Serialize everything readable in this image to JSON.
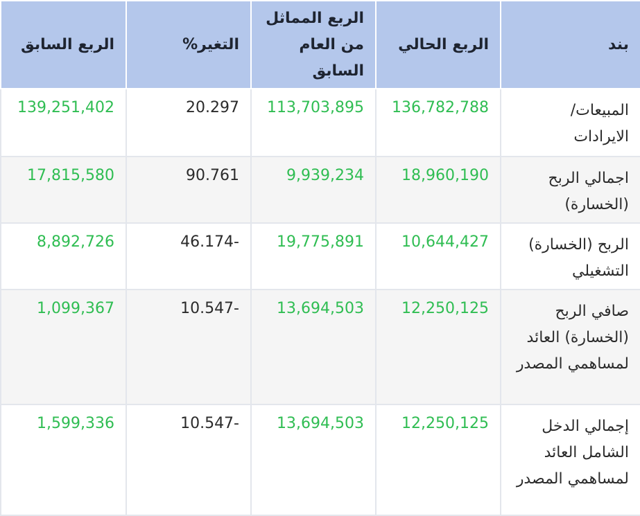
{
  "table": {
    "headers": {
      "item": "بند",
      "current_quarter": "الربع الحالي",
      "same_quarter_last_year": "الربع المماثل من العام السابق",
      "change_pct": "التغير%",
      "previous_quarter": "الربع السابق"
    },
    "rows": [
      {
        "item": "المبيعات/ الايرادات",
        "current_quarter": "136,782,788",
        "same_quarter_last_year": "113,703,895",
        "change_pct": "20.297",
        "previous_quarter": "139,251,402"
      },
      {
        "item": "اجمالي الربح (الخسارة)",
        "current_quarter": "18,960,190",
        "same_quarter_last_year": "9,939,234",
        "change_pct": "90.761",
        "previous_quarter": "17,815,580"
      },
      {
        "item": "الربح (الخسارة) التشغيلي",
        "current_quarter": "10,644,427",
        "same_quarter_last_year": "19,775,891",
        "change_pct": "46.174-",
        "previous_quarter": "8,892,726"
      },
      {
        "item": "صافي الربح (الخسارة) العائد لمساهمي المصدر",
        "current_quarter": "12,250,125",
        "same_quarter_last_year": "13,694,503",
        "change_pct": "10.547-",
        "previous_quarter": "1,099,367"
      },
      {
        "item": "إجمالي الدخل الشامل العائد لمساهمي المصدر",
        "current_quarter": "12,250,125",
        "same_quarter_last_year": "13,694,503",
        "change_pct": "10.547-",
        "previous_quarter": "1,599,336"
      }
    ]
  },
  "colors": {
    "header_bg": "#b4c7eb",
    "value_green": "#2fbd52",
    "row_alt_bg": "#f5f5f5"
  }
}
